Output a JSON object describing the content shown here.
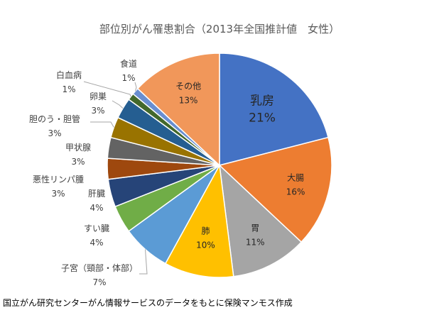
{
  "source_note": "国立がん研究センターがん情報サービスのデータをもとに保険マンモス作成",
  "chart_data": {
    "type": "pie",
    "title": "部位別がん罹患割合（2013年全国推計値　女性）",
    "start_angle_deg": 0,
    "direction": "clockwise",
    "legend": "none",
    "slices": [
      {
        "label": "乳房",
        "value": 21,
        "value_label": "21%",
        "color": "#4472c4"
      },
      {
        "label": "大腸",
        "value": 16,
        "value_label": "16%",
        "color": "#ed7d31"
      },
      {
        "label": "胃",
        "value": 11,
        "value_label": "11%",
        "color": "#a5a5a5"
      },
      {
        "label": "肺",
        "value": 10,
        "value_label": "10%",
        "color": "#ffc000"
      },
      {
        "label": "子宮（頸部・体部）",
        "value": 7,
        "value_label": "7%",
        "color": "#5b9bd5"
      },
      {
        "label": "すい臓",
        "value": 4,
        "value_label": "4%",
        "color": "#70ad47"
      },
      {
        "label": "肝臓",
        "value": 4,
        "value_label": "4%",
        "color": "#264478"
      },
      {
        "label": "悪性リンパ腫",
        "value": 3,
        "value_label": "3%",
        "color": "#9e480e"
      },
      {
        "label": "甲状腺",
        "value": 3,
        "value_label": "3%",
        "color": "#636363"
      },
      {
        "label": "胆のう・胆管",
        "value": 3,
        "value_label": "3%",
        "color": "#997300"
      },
      {
        "label": "卵巣",
        "value": 3,
        "value_label": "3%",
        "color": "#255e91"
      },
      {
        "label": "白血病",
        "value": 1,
        "value_label": "1%",
        "color": "#43682b"
      },
      {
        "label": "食道",
        "value": 1,
        "value_label": "1%",
        "color": "#698ed0"
      },
      {
        "label": "その他",
        "value": 13,
        "value_label": "13%",
        "color": "#f1975a"
      }
    ]
  }
}
